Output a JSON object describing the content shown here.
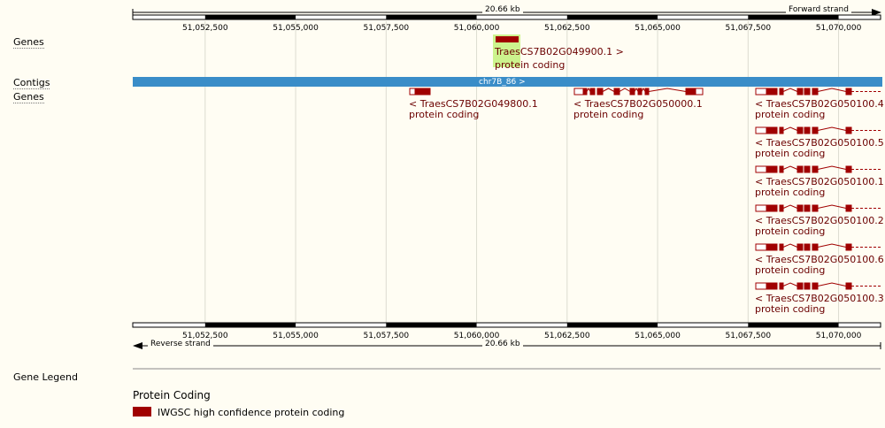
{
  "scale": {
    "length_label": "20.66 kb",
    "forward_strand_label": "Forward strand",
    "reverse_strand_label": "Reverse strand"
  },
  "region": {
    "start_bp": 51050500,
    "end_bp": 51071160
  },
  "ticks": [
    {
      "bp": 51052500,
      "label": "51,052,500"
    },
    {
      "bp": 51055000,
      "label": "51,055,000"
    },
    {
      "bp": 51057500,
      "label": "51,057,500"
    },
    {
      "bp": 51060000,
      "label": "51,060,000"
    },
    {
      "bp": 51062500,
      "label": "51,062,500"
    },
    {
      "bp": 51065000,
      "label": "51,065,000"
    },
    {
      "bp": 51067500,
      "label": "51,067,500"
    },
    {
      "bp": 51070000,
      "label": "51,070,000"
    }
  ],
  "tracks": {
    "genes_forward_label": "Genes",
    "contigs_label": "Contigs",
    "genes_reverse_label": "Genes"
  },
  "contig": {
    "label": "chr7B_86 >",
    "color": "#3a8dc8"
  },
  "forward_gene": {
    "name": "TraesCS7B02G049900.1 >",
    "biotype": "protein coding",
    "highlight_color": "#ccf38d"
  },
  "reverse_genes": [
    {
      "name": "< TraesCS7B02G049800.1",
      "biotype": "protein coding"
    },
    {
      "name": "< TraesCS7B02G050000.1",
      "biotype": "protein coding"
    },
    {
      "name": "< TraesCS7B02G050100.4",
      "biotype": "protein coding"
    },
    {
      "name": "< TraesCS7B02G050100.5",
      "biotype": "protein coding"
    },
    {
      "name": "< TraesCS7B02G050100.1",
      "biotype": "protein coding"
    },
    {
      "name": "< TraesCS7B02G050100.2",
      "biotype": "protein coding"
    },
    {
      "name": "< TraesCS7B02G050100.6",
      "biotype": "protein coding"
    },
    {
      "name": "< TraesCS7B02G050100.3",
      "biotype": "protein coding"
    }
  ],
  "gene_color": "#a00000",
  "legend": {
    "title": "Gene Legend",
    "category": "Protein Coding",
    "item": "IWGSC high confidence protein coding"
  }
}
